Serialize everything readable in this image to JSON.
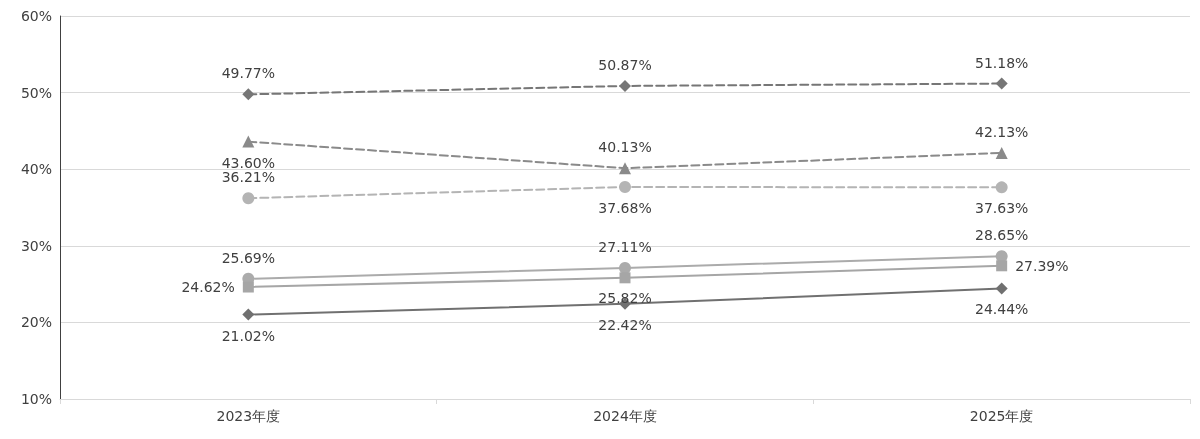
{
  "chart_data": {
    "type": "line",
    "categories": [
      "2023年度",
      "2024年度",
      "2025年度"
    ],
    "ylim": [
      10,
      60
    ],
    "yticks": [
      {
        "value": 10,
        "label": "10%"
      },
      {
        "value": 20,
        "label": "20%"
      },
      {
        "value": 30,
        "label": "30%"
      },
      {
        "value": 40,
        "label": "40%"
      },
      {
        "value": 50,
        "label": "50%"
      },
      {
        "value": 60,
        "label": "60%"
      }
    ],
    "grid": "y",
    "series": [
      {
        "color": "#767676",
        "marker": "diamond",
        "line_style": "dashed",
        "values": [
          49.77,
          50.87,
          51.18
        ],
        "value_labels": [
          "49.77%",
          "50.87%",
          "51.18%"
        ]
      },
      {
        "color": "#8a8a8a",
        "marker": "triangle",
        "line_style": "dashed",
        "values": [
          43.6,
          40.13,
          42.13
        ],
        "value_labels": [
          "43.60%",
          "40.13%",
          "42.13%"
        ]
      },
      {
        "color": "#b4b4b4",
        "marker": "circle",
        "line_style": "dashed",
        "values": [
          36.21,
          37.68,
          37.63
        ],
        "value_labels": [
          "36.21%",
          "37.68%",
          "37.63%"
        ]
      },
      {
        "color": "#ababab",
        "marker": "circle",
        "line_style": "solid",
        "values": [
          25.69,
          27.11,
          28.65
        ],
        "value_labels": [
          "25.69%",
          "27.11%",
          "28.65%"
        ]
      },
      {
        "color": "#a6a6a6",
        "marker": "square",
        "line_style": "solid",
        "values": [
          24.62,
          25.82,
          27.39
        ],
        "value_labels": [
          "24.62%",
          "25.82%",
          "27.39%"
        ]
      },
      {
        "color": "#707070",
        "marker": "diamond",
        "line_style": "solid",
        "values": [
          21.02,
          22.42,
          24.44
        ],
        "value_labels": [
          "21.02%",
          "22.42%",
          "24.44%"
        ]
      }
    ]
  }
}
